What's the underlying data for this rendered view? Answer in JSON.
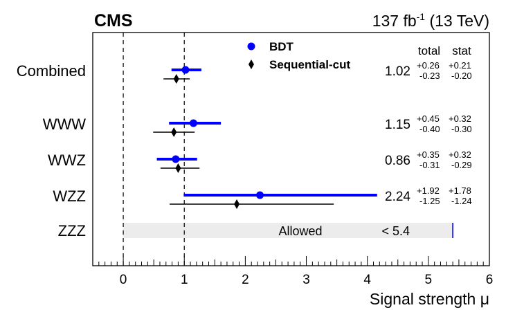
{
  "chart_data": {
    "type": "scatter",
    "experiment": "CMS",
    "lumi": {
      "prefix": "137 fb",
      "sup": "-1",
      "suffix": " (13 TeV)"
    },
    "xlabel": "Signal strength μ",
    "xlim": [
      -0.5,
      6
    ],
    "xticks": [
      0,
      1,
      2,
      3,
      4,
      5,
      6
    ],
    "dashed_reference_lines": [
      0,
      1
    ],
    "legend": {
      "position": "top-center",
      "entries": [
        {
          "label": "BDT",
          "marker": "circle",
          "color": "#0000ff"
        },
        {
          "label": "Sequential-cut",
          "marker": "diamond",
          "color": "#000000"
        }
      ]
    },
    "column_headers": {
      "total": "total",
      "stat": "stat"
    },
    "categories": [
      "Combined",
      "WWW",
      "WWZ",
      "WZZ",
      "ZZZ"
    ],
    "series": [
      {
        "name": "BDT",
        "points": [
          {
            "category": "Combined",
            "value": 1.02,
            "low": 0.79,
            "high": 1.28
          },
          {
            "category": "WWW",
            "value": 1.15,
            "low": 0.75,
            "high": 1.6
          },
          {
            "category": "WWZ",
            "value": 0.86,
            "low": 0.55,
            "high": 1.21
          },
          {
            "category": "WZZ",
            "value": 2.24,
            "low": 0.99,
            "high": 4.16
          }
        ]
      },
      {
        "name": "Sequential-cut",
        "points": [
          {
            "category": "Combined",
            "value": 0.87,
            "low": 0.66,
            "high": 1.09
          },
          {
            "category": "WWW",
            "value": 0.83,
            "low": 0.49,
            "high": 1.17
          },
          {
            "category": "WWZ",
            "value": 0.9,
            "low": 0.61,
            "high": 1.25
          },
          {
            "category": "WZZ",
            "value": 1.86,
            "low": 0.76,
            "high": 3.45
          }
        ]
      }
    ],
    "results": [
      {
        "category": "Combined",
        "value": "1.02",
        "total_up": "+0.26",
        "total_down": "-0.23",
        "stat_up": "+0.21",
        "stat_down": "-0.20"
      },
      {
        "category": "WWW",
        "value": "1.15",
        "total_up": "+0.45",
        "total_down": "-0.40",
        "stat_up": "+0.32",
        "stat_down": "-0.30"
      },
      {
        "category": "WWZ",
        "value": "0.86",
        "total_up": "+0.35",
        "total_down": "-0.31",
        "stat_up": "+0.32",
        "stat_down": "-0.29"
      },
      {
        "category": "WZZ",
        "value": "2.24",
        "total_up": "+1.92",
        "total_down": "-1.25",
        "stat_up": "+1.78",
        "stat_down": "-1.24"
      }
    ],
    "allowed_region": {
      "category": "ZZZ",
      "range": [
        0,
        5.4
      ],
      "label": "Allowed",
      "limit_text": "< 5.4",
      "fill_color": "#ececec",
      "limit_line_color": "#0000ff"
    }
  }
}
